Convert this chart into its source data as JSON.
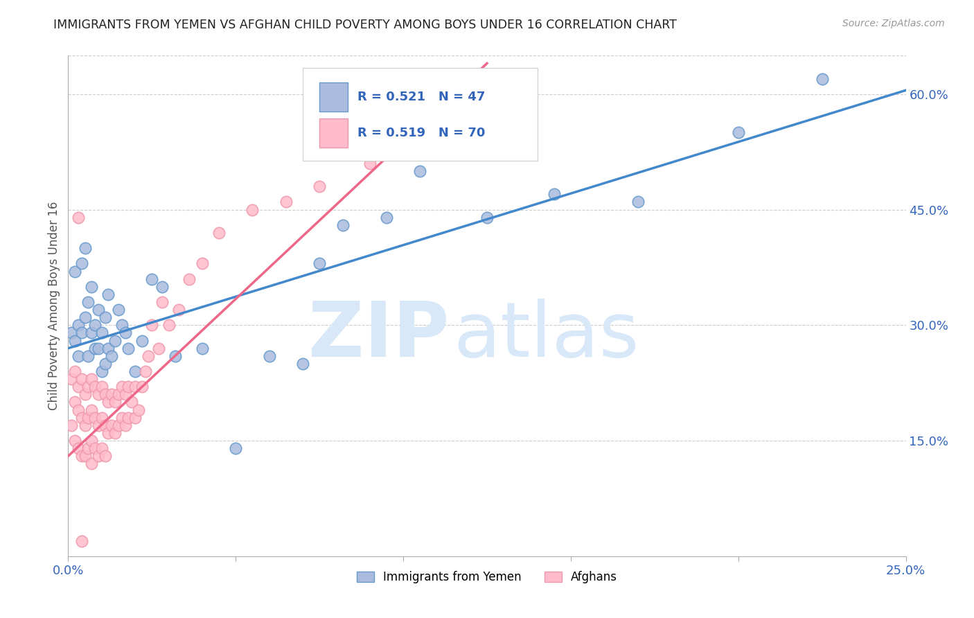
{
  "title": "IMMIGRANTS FROM YEMEN VS AFGHAN CHILD POVERTY AMONG BOYS UNDER 16 CORRELATION CHART",
  "source": "Source: ZipAtlas.com",
  "ylabel": "Child Poverty Among Boys Under 16",
  "xlim": [
    0.0,
    0.25
  ],
  "ylim": [
    0.0,
    0.65
  ],
  "xticks": [
    0.0,
    0.05,
    0.1,
    0.15,
    0.2,
    0.25
  ],
  "xtick_labels": [
    "0.0%",
    "",
    "",
    "",
    "",
    "25.0%"
  ],
  "yticks_right": [
    0.15,
    0.3,
    0.45,
    0.6
  ],
  "ytick_labels_right": [
    "15.0%",
    "30.0%",
    "45.0%",
    "60.0%"
  ],
  "blue_fill_color": "#AABBDD",
  "blue_edge_color": "#6699CC",
  "pink_fill_color": "#FFBBCC",
  "pink_edge_color": "#EE99AA",
  "line_blue_color": "#4488CC",
  "line_pink_color": "#EE6688",
  "watermark_zip": "ZIP",
  "watermark_atlas": "atlas",
  "watermark_color": "#D8E8F8",
  "blue_r_text": "R = 0.521",
  "blue_n_text": "N = 47",
  "pink_r_text": "R = 0.519",
  "pink_n_text": "N = 70",
  "legend_text_color": "#3366BB",
  "legend_blue_label": "Immigrants from Yemen",
  "legend_pink_label": "Afghans",
  "blue_scatter_x": [
    0.001,
    0.002,
    0.002,
    0.003,
    0.003,
    0.004,
    0.004,
    0.005,
    0.005,
    0.006,
    0.006,
    0.007,
    0.007,
    0.008,
    0.008,
    0.009,
    0.009,
    0.01,
    0.01,
    0.011,
    0.011,
    0.012,
    0.012,
    0.013,
    0.014,
    0.015,
    0.016,
    0.017,
    0.018,
    0.02,
    0.022,
    0.025,
    0.028,
    0.032,
    0.04,
    0.05,
    0.06,
    0.07,
    0.075,
    0.082,
    0.095,
    0.105,
    0.125,
    0.145,
    0.17,
    0.2,
    0.225
  ],
  "blue_scatter_y": [
    0.29,
    0.37,
    0.28,
    0.3,
    0.26,
    0.38,
    0.29,
    0.4,
    0.31,
    0.33,
    0.26,
    0.35,
    0.29,
    0.3,
    0.27,
    0.32,
    0.27,
    0.29,
    0.24,
    0.31,
    0.25,
    0.34,
    0.27,
    0.26,
    0.28,
    0.32,
    0.3,
    0.29,
    0.27,
    0.24,
    0.28,
    0.36,
    0.35,
    0.26,
    0.27,
    0.14,
    0.26,
    0.25,
    0.38,
    0.43,
    0.44,
    0.5,
    0.44,
    0.47,
    0.46,
    0.55,
    0.62
  ],
  "pink_scatter_x": [
    0.001,
    0.001,
    0.002,
    0.002,
    0.002,
    0.003,
    0.003,
    0.003,
    0.004,
    0.004,
    0.004,
    0.005,
    0.005,
    0.005,
    0.006,
    0.006,
    0.006,
    0.007,
    0.007,
    0.007,
    0.007,
    0.008,
    0.008,
    0.008,
    0.009,
    0.009,
    0.009,
    0.01,
    0.01,
    0.01,
    0.011,
    0.011,
    0.011,
    0.012,
    0.012,
    0.013,
    0.013,
    0.014,
    0.014,
    0.015,
    0.015,
    0.016,
    0.016,
    0.017,
    0.017,
    0.018,
    0.018,
    0.019,
    0.02,
    0.02,
    0.021,
    0.022,
    0.023,
    0.024,
    0.025,
    0.027,
    0.028,
    0.03,
    0.033,
    0.036,
    0.04,
    0.045,
    0.055,
    0.065,
    0.075,
    0.09,
    0.105,
    0.12,
    0.003,
    0.004
  ],
  "pink_scatter_y": [
    0.23,
    0.17,
    0.24,
    0.2,
    0.15,
    0.22,
    0.19,
    0.14,
    0.23,
    0.18,
    0.13,
    0.21,
    0.17,
    0.13,
    0.22,
    0.18,
    0.14,
    0.23,
    0.19,
    0.15,
    0.12,
    0.22,
    0.18,
    0.14,
    0.21,
    0.17,
    0.13,
    0.22,
    0.18,
    0.14,
    0.21,
    0.17,
    0.13,
    0.2,
    0.16,
    0.21,
    0.17,
    0.2,
    0.16,
    0.21,
    0.17,
    0.22,
    0.18,
    0.21,
    0.17,
    0.22,
    0.18,
    0.2,
    0.22,
    0.18,
    0.19,
    0.22,
    0.24,
    0.26,
    0.3,
    0.27,
    0.33,
    0.3,
    0.32,
    0.36,
    0.38,
    0.42,
    0.45,
    0.46,
    0.48,
    0.51,
    0.54,
    0.55,
    0.44,
    0.02
  ],
  "blue_line_x": [
    0.0,
    0.25
  ],
  "blue_line_y": [
    0.27,
    0.605
  ],
  "pink_line_x": [
    0.0,
    0.125
  ],
  "pink_line_y": [
    0.13,
    0.64
  ],
  "background_color": "#FFFFFF",
  "title_color": "#222222",
  "axis_label_color": "#555555",
  "right_tick_color": "#3366BB",
  "bottom_tick_color": "#3366BB",
  "grid_color": "#CCCCCC"
}
